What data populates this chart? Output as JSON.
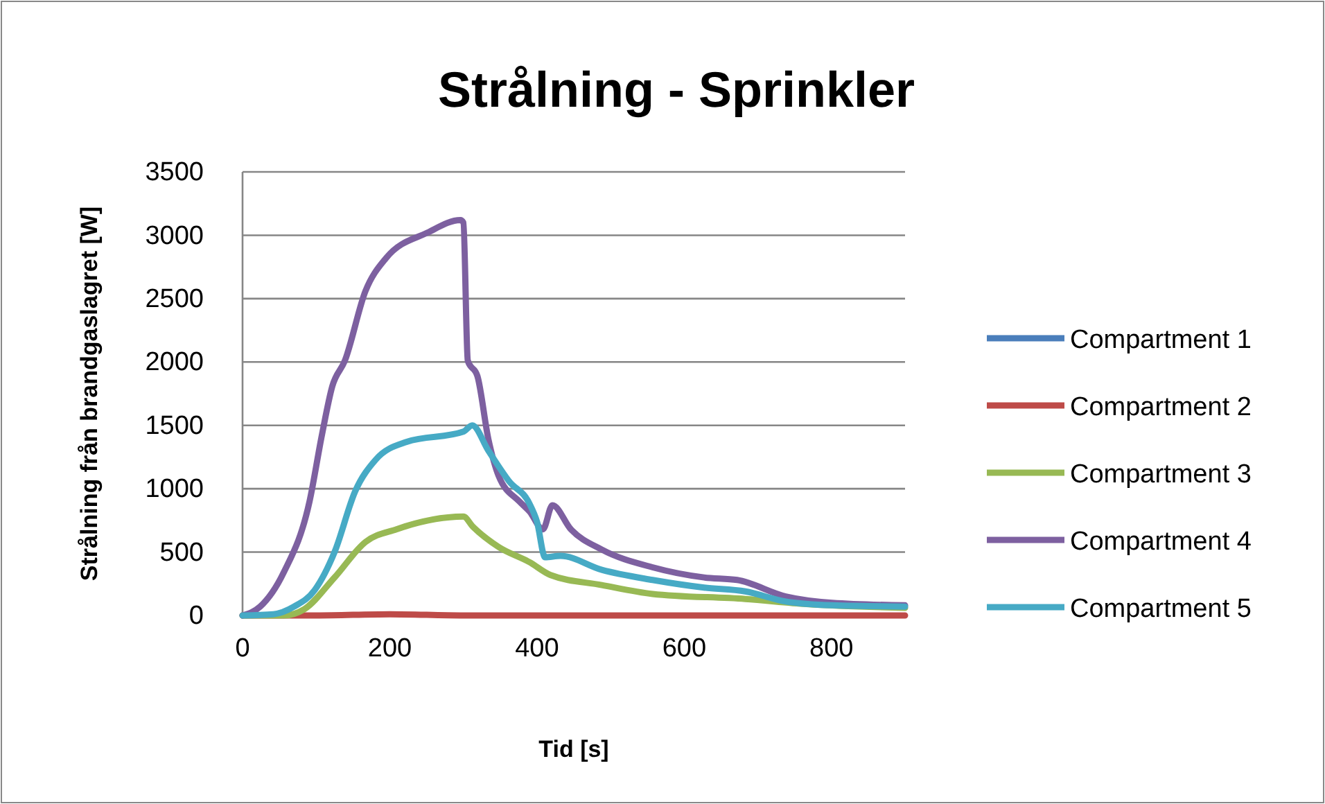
{
  "chart_data": {
    "type": "line",
    "title": "Strålning - Sprinkler",
    "xlabel": "Tid [s]",
    "ylabel": "Strålning från brandgaslagret [W]",
    "xlim": [
      0,
      900
    ],
    "xticks": [
      0,
      200,
      400,
      600,
      800
    ],
    "ylim": [
      0,
      3500
    ],
    "yticks": [
      0,
      500,
      1000,
      1500,
      2000,
      2500,
      3000,
      3500
    ],
    "grid": "y",
    "legend": "right",
    "series": [
      {
        "name": "Compartment 1",
        "color": "#4a7ebb"
      },
      {
        "name": "Compartment 2",
        "color": "#be4b48",
        "x": [
          0,
          100,
          200,
          300,
          400,
          500,
          600,
          700,
          800,
          900
        ],
        "values": [
          0,
          0,
          10,
          0,
          0,
          0,
          0,
          0,
          0,
          0
        ]
      },
      {
        "name": "Compartment 3",
        "color": "#98b954",
        "x": [
          0,
          56,
          84,
          125,
          167,
          209,
          300,
          313,
          348,
          390,
          418,
          488,
          557,
          683,
          766,
          900
        ],
        "values": [
          0,
          0,
          50,
          300,
          580,
          680,
          780,
          700,
          540,
          420,
          320,
          240,
          170,
          130,
          90,
          60
        ]
      },
      {
        "name": "Compartment 4",
        "color": "#7d60a0",
        "x": [
          0,
          24,
          56,
          91,
          108,
          122,
          139,
          167,
          195,
          251,
          296,
          300,
          306,
          319,
          334,
          348,
          376,
          390,
          408,
          421,
          446,
          488,
          557,
          627,
          672,
          738,
          801,
          900
        ],
        "values": [
          0,
          70,
          340,
          900,
          1430,
          1810,
          2010,
          2560,
          2820,
          3020,
          3120,
          3100,
          2010,
          1890,
          1390,
          1100,
          900,
          820,
          680,
          870,
          680,
          520,
          380,
          300,
          280,
          150,
          100,
          80
        ]
      },
      {
        "name": "Compartment 5",
        "color": "#46aac5",
        "x": [
          0,
          42,
          70,
          98,
          125,
          153,
          181,
          223,
          300,
          312,
          334,
          362,
          390,
          400,
          411,
          432,
          488,
          557,
          627,
          683,
          738,
          801,
          900
        ],
        "values": [
          0,
          10,
          70,
          200,
          500,
          980,
          1230,
          1370,
          1450,
          1500,
          1300,
          1060,
          880,
          740,
          460,
          470,
          360,
          280,
          220,
          190,
          110,
          80,
          70
        ]
      }
    ]
  }
}
